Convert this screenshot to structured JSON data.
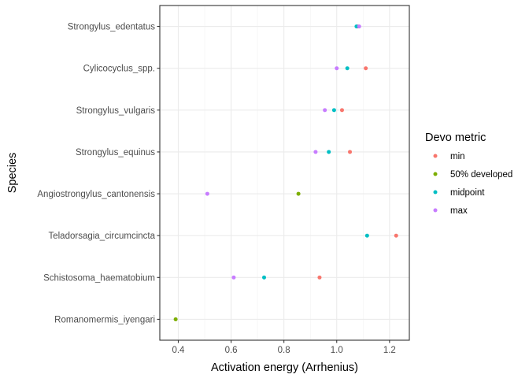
{
  "chart_data": {
    "type": "scatter",
    "xlabel": "Activation energy (Arrhenius)",
    "ylabel": "Species",
    "xlim": [
      0.33,
      1.275
    ],
    "x_ticks": [
      0.4,
      0.6,
      0.8,
      1.0,
      1.2
    ],
    "x_tick_labels": [
      "0.4",
      "0.6",
      "0.8",
      "1.0",
      "1.2"
    ],
    "categories": [
      "Strongylus_edentatus",
      "Cylicocyclus_spp.",
      "Strongylus_vulgaris",
      "Strongylus_equinus",
      "Angiostrongylus_cantonensis",
      "Teladorsagia_circumcincta",
      "Schistosoma_haematobium",
      "Romanomermis_iyengari"
    ],
    "grid": true,
    "legend": {
      "title": "Devo metric",
      "placement": "right"
    },
    "series": [
      {
        "name": "min",
        "color": "#F8766D",
        "points": [
          {
            "species": "Strongylus_edentatus",
            "x": 1.08
          },
          {
            "species": "Cylicocyclus_spp.",
            "x": 1.11
          },
          {
            "species": "Strongylus_vulgaris",
            "x": 1.02
          },
          {
            "species": "Strongylus_equinus",
            "x": 1.05
          },
          {
            "species": "Teladorsagia_circumcincta",
            "x": 1.225
          },
          {
            "species": "Schistosoma_haematobium",
            "x": 0.935
          }
        ]
      },
      {
        "name": "50% developed",
        "color": "#7CAE00",
        "points": [
          {
            "species": "Angiostrongylus_cantonensis",
            "x": 0.855
          },
          {
            "species": "Romanomermis_iyengari",
            "x": 0.39
          }
        ]
      },
      {
        "name": "midpoint",
        "color": "#00BFC4",
        "points": [
          {
            "species": "Strongylus_edentatus",
            "x": 1.075
          },
          {
            "species": "Cylicocyclus_spp.",
            "x": 1.04
          },
          {
            "species": "Strongylus_vulgaris",
            "x": 0.99
          },
          {
            "species": "Strongylus_equinus",
            "x": 0.97
          },
          {
            "species": "Teladorsagia_circumcincta",
            "x": 1.115
          },
          {
            "species": "Schistosoma_haematobium",
            "x": 0.725
          }
        ]
      },
      {
        "name": "max",
        "color": "#C77CFF",
        "points": [
          {
            "species": "Strongylus_edentatus",
            "x": 1.085
          },
          {
            "species": "Cylicocyclus_spp.",
            "x": 1.0
          },
          {
            "species": "Strongylus_vulgaris",
            "x": 0.955
          },
          {
            "species": "Strongylus_equinus",
            "x": 0.92
          },
          {
            "species": "Angiostrongylus_cantonensis",
            "x": 0.51
          },
          {
            "species": "Schistosoma_haematobium",
            "x": 0.61
          }
        ]
      }
    ]
  }
}
